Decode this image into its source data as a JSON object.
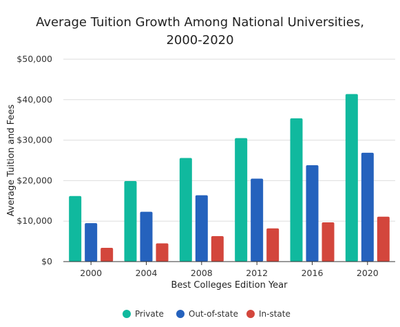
{
  "chart_data": {
    "type": "bar",
    "title": "Average Tuition Growth Among National Universities, 2000-2020",
    "xlabel": "Best Colleges Edition Year",
    "ylabel": "Average Tuition and Fees",
    "categories": [
      "2000",
      "2004",
      "2008",
      "2012",
      "2016",
      "2020"
    ],
    "ylim": [
      0,
      50000
    ],
    "yticks": [
      0,
      10000,
      20000,
      30000,
      40000,
      50000
    ],
    "ytick_labels": [
      "$0",
      "$10,000",
      "$20,000",
      "$30,000",
      "$40,000",
      "$50,000"
    ],
    "grid": true,
    "legend_position": "bottom",
    "series": [
      {
        "name": "Private",
        "color": "#10b99e",
        "values": [
          16200,
          19900,
          25600,
          30500,
          35400,
          41400
        ]
      },
      {
        "name": "Out-of-state",
        "color": "#2562bd",
        "values": [
          9500,
          12300,
          16400,
          20500,
          23800,
          26900
        ]
      },
      {
        "name": "In-state",
        "color": "#d3463c",
        "values": [
          3400,
          4500,
          6300,
          8200,
          9700,
          11100
        ]
      }
    ]
  }
}
